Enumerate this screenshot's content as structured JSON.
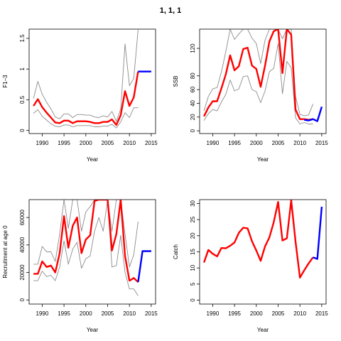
{
  "title": "1, 1, 1",
  "colors": {
    "estimate": "#ff0000",
    "projection": "#0000ff",
    "bounds": "#8c8c8c",
    "axes": "#000000"
  },
  "chart_data": [
    {
      "type": "line",
      "xlabel": "Year",
      "ylabel": "F1–3",
      "xlim": [
        1987,
        2016
      ],
      "ylim": [
        -0.05,
        1.65
      ],
      "xticks": [
        1990,
        1995,
        2000,
        2005,
        2010,
        2015
      ],
      "yticks": [
        0.0,
        0.5,
        1.0,
        1.5
      ],
      "series": [
        {
          "role": "estimate",
          "x": [
            1988,
            1989,
            1990,
            1991,
            1992,
            1993,
            1994,
            1995,
            1996,
            1997,
            1998,
            1999,
            2000,
            2001,
            2002,
            2003,
            2004,
            2005,
            2006,
            2007,
            2008,
            2009,
            2010,
            2011,
            2012
          ],
          "y": [
            0.4,
            0.51,
            0.38,
            0.29,
            0.21,
            0.13,
            0.12,
            0.16,
            0.16,
            0.12,
            0.15,
            0.15,
            0.15,
            0.14,
            0.12,
            0.12,
            0.14,
            0.14,
            0.18,
            0.09,
            0.25,
            0.64,
            0.4,
            0.54,
            0.96
          ]
        },
        {
          "role": "upper",
          "x": [
            1988,
            1989,
            1990,
            1991,
            1992,
            1993,
            1994,
            1995,
            1996,
            1997,
            1998,
            1999,
            2000,
            2001,
            2002,
            2003,
            2004,
            2005,
            2006,
            2007,
            2008,
            2009,
            2010,
            2011,
            2012
          ],
          "y": [
            0.52,
            0.8,
            0.59,
            0.46,
            0.35,
            0.22,
            0.19,
            0.27,
            0.27,
            0.21,
            0.26,
            0.26,
            0.25,
            0.25,
            0.22,
            0.21,
            0.24,
            0.22,
            0.31,
            0.15,
            0.35,
            1.41,
            0.73,
            0.85,
            1.64
          ]
        },
        {
          "role": "lower",
          "x": [
            1988,
            1989,
            1990,
            1991,
            1992,
            1993,
            1994,
            1995,
            1996,
            1997,
            1998,
            1999,
            2000,
            2001,
            2002,
            2003,
            2004,
            2005,
            2006,
            2007,
            2008,
            2009,
            2010,
            2011,
            2012
          ],
          "y": [
            0.28,
            0.34,
            0.23,
            0.17,
            0.11,
            0.07,
            0.06,
            0.09,
            0.09,
            0.06,
            0.08,
            0.08,
            0.08,
            0.08,
            0.06,
            0.06,
            0.07,
            0.07,
            0.1,
            0.04,
            0.14,
            0.29,
            0.21,
            0.37,
            0.37
          ]
        },
        {
          "role": "projection",
          "x": [
            2012,
            2015
          ],
          "y": [
            0.96,
            0.96
          ]
        }
      ]
    },
    {
      "type": "line",
      "xlabel": "Year",
      "ylabel": "SSB",
      "xlim": [
        1987,
        2016
      ],
      "ylim": [
        -4,
        148
      ],
      "xticks": [
        1990,
        1995,
        2000,
        2005,
        2010,
        2015
      ],
      "yticks": [
        0,
        20,
        40,
        60,
        80,
        120
      ],
      "series": [
        {
          "role": "estimate",
          "x": [
            1988,
            1989,
            1990,
            1991,
            1992,
            1993,
            1994,
            1995,
            1996,
            1997,
            1998,
            1999,
            2000,
            2001,
            2002,
            2003,
            2004,
            2005,
            2006,
            2007,
            2008,
            2009,
            2010,
            2011,
            2012,
            2013
          ],
          "y": [
            21,
            34,
            43,
            43,
            62,
            82,
            110,
            88,
            94,
            119,
            121,
            95,
            90,
            64,
            95,
            130,
            145,
            148,
            84,
            148,
            140,
            31,
            17,
            17,
            16,
            17
          ]
        },
        {
          "role": "upper",
          "x": [
            1988,
            1989,
            1990,
            1991,
            1992,
            1993,
            1994,
            1995,
            1996,
            1997,
            1998,
            1999,
            2000,
            2001,
            2002,
            2003,
            2004,
            2005,
            2006,
            2007,
            2008,
            2009,
            2010,
            2011,
            2012,
            2013
          ],
          "y": [
            29,
            50,
            61,
            63,
            86,
            115,
            148,
            133,
            141,
            148,
            148,
            135,
            127,
            98,
            132,
            148,
            148,
            148,
            134,
            148,
            148,
            50,
            24,
            22,
            23,
            39
          ]
        },
        {
          "role": "lower",
          "x": [
            1988,
            1989,
            1990,
            1991,
            1992,
            1993,
            1994,
            1995,
            1996,
            1997,
            1998,
            1999,
            2000,
            2001,
            2002,
            2003,
            2004,
            2005,
            2006,
            2007,
            2008,
            2009,
            2010,
            2011,
            2012,
            2013
          ],
          "y": [
            15,
            25,
            31,
            29,
            42,
            53,
            74,
            58,
            61,
            79,
            80,
            60,
            57,
            41,
            58,
            86,
            91,
            127,
            54,
            101,
            92,
            19,
            10,
            12,
            10,
            10
          ]
        },
        {
          "role": "projection",
          "x": [
            2011,
            2012,
            2013,
            2014,
            2015
          ],
          "y": [
            16,
            15,
            17,
            14,
            35
          ]
        }
      ]
    },
    {
      "type": "line",
      "xlabel": "Year",
      "ylabel": "Recruitment at age 0",
      "xlim": [
        1987,
        2016
      ],
      "ylim": [
        -3000,
        73000
      ],
      "xticks": [
        1990,
        1995,
        2000,
        2005,
        2010,
        2015
      ],
      "yticks": [
        0,
        20000,
        40000,
        60000
      ],
      "series": [
        {
          "role": "estimate",
          "x": [
            1988,
            1989,
            1990,
            1991,
            1992,
            1993,
            1994,
            1995,
            1996,
            1997,
            1998,
            1999,
            2000,
            2001,
            2002,
            2003,
            2004,
            2005,
            2006,
            2007,
            2008,
            2009,
            2010,
            2011,
            2012
          ],
          "y": [
            19000,
            19000,
            28000,
            24000,
            25000,
            20000,
            34000,
            61000,
            38000,
            54000,
            60000,
            34000,
            44000,
            47000,
            72000,
            73000,
            73000,
            73000,
            36000,
            48000,
            73000,
            32000,
            14000,
            16000,
            13000
          ]
        },
        {
          "role": "upper",
          "x": [
            1988,
            1989,
            1990,
            1991,
            1992,
            1993,
            1994,
            1995,
            1996,
            1997,
            1998,
            1999,
            2000,
            2001,
            2002,
            2003,
            2004,
            2005,
            2006,
            2007,
            2008,
            2009,
            2010,
            2011,
            2012
          ],
          "y": [
            26000,
            26000,
            39000,
            35000,
            35000,
            28000,
            48000,
            73000,
            52000,
            73000,
            73000,
            50000,
            64000,
            68000,
            73000,
            73000,
            73000,
            73000,
            50000,
            73000,
            73000,
            48000,
            24000,
            33000,
            57000
          ]
        },
        {
          "role": "lower",
          "x": [
            1988,
            1989,
            1990,
            1991,
            1992,
            1993,
            1994,
            1995,
            1996,
            1997,
            1998,
            1999,
            2000,
            2001,
            2002,
            2003,
            2004,
            2005,
            2006,
            2007,
            2008,
            2009,
            2010,
            2011,
            2012
          ],
          "y": [
            14000,
            14000,
            21000,
            17000,
            18000,
            14000,
            24000,
            43000,
            26000,
            37000,
            42000,
            23000,
            30000,
            32000,
            50000,
            60000,
            50000,
            73000,
            24000,
            25000,
            47000,
            20000,
            8000,
            8000,
            3000
          ]
        },
        {
          "role": "projection",
          "x": [
            2012,
            2013,
            2014,
            2015
          ],
          "y": [
            13000,
            35500,
            35500,
            35500
          ]
        }
      ]
    },
    {
      "type": "line",
      "xlabel": "Year",
      "ylabel": "Catch",
      "xlim": [
        1987,
        2016
      ],
      "ylim": [
        -1.2,
        31.2
      ],
      "xticks": [
        1990,
        1995,
        2000,
        2005,
        2010,
        2015
      ],
      "yticks": [
        0,
        5,
        10,
        15,
        20,
        25,
        30
      ],
      "series": [
        {
          "role": "estimate",
          "x": [
            1988,
            1989,
            1990,
            1991,
            1992,
            1993,
            1994,
            1995,
            1996,
            1997,
            1998,
            1999,
            2000,
            2001,
            2002,
            2003,
            2004,
            2005,
            2006,
            2007,
            2008,
            2009,
            2010,
            2011,
            2012,
            2013
          ],
          "y": [
            11.7,
            15.6,
            14.4,
            13.6,
            16.2,
            16.1,
            16.9,
            17.9,
            20.9,
            22.5,
            22.3,
            18.3,
            15.4,
            12.2,
            16.7,
            19.5,
            24.2,
            30.5,
            18.5,
            19.2,
            31.0,
            18.2,
            7.0,
            9.3,
            11.4,
            13.3
          ]
        },
        {
          "role": "projection",
          "x": [
            2013,
            2014,
            2015
          ],
          "y": [
            13.3,
            12.8,
            29.0
          ]
        }
      ]
    }
  ]
}
